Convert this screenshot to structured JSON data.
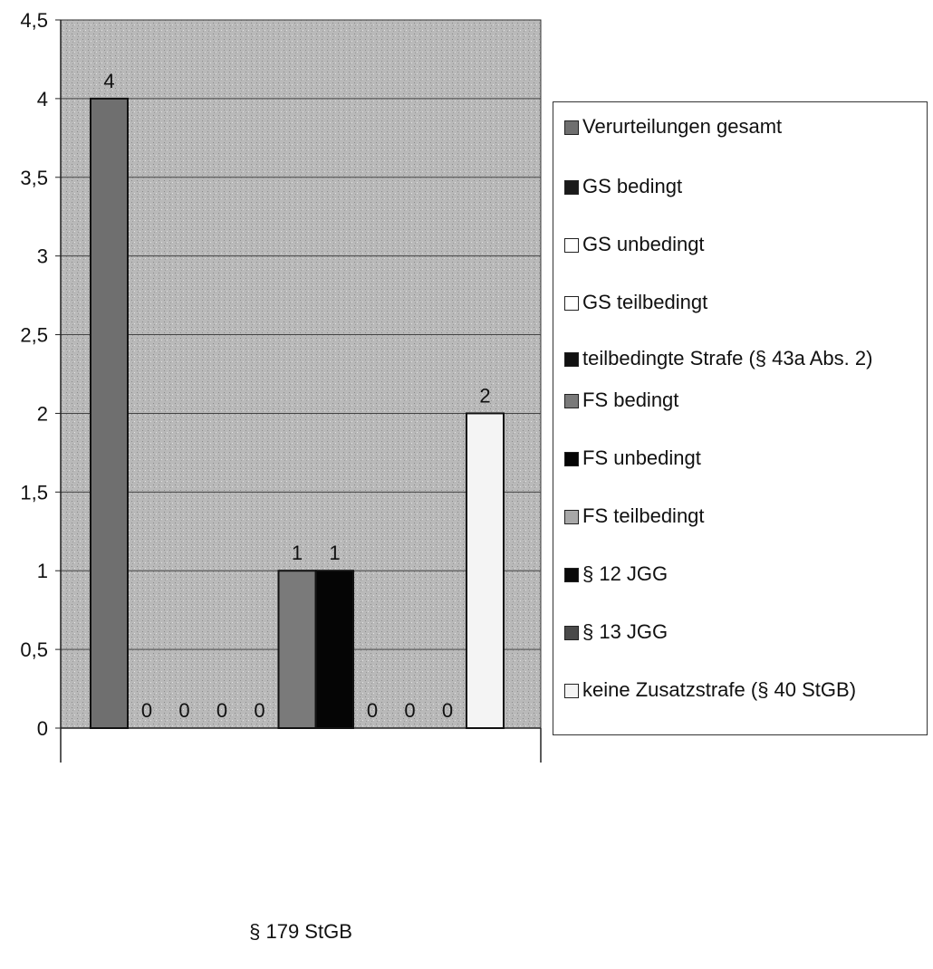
{
  "chart_data": {
    "type": "bar",
    "categories": [
      "§ 179 StGB"
    ],
    "ylim": [
      0,
      4.5
    ],
    "y_ticks": [
      "0",
      "0,5",
      "1",
      "1,5",
      "2",
      "2,5",
      "3",
      "3,5",
      "4",
      "4,5"
    ],
    "grid": true,
    "legend_position": "right",
    "series": [
      {
        "name": "Verurteilungen gesamt",
        "values": [
          4
        ],
        "label": "4",
        "color": "#6f6f6f"
      },
      {
        "name": "GS bedingt",
        "values": [
          0
        ],
        "label": "0",
        "color": "#1a1a1a"
      },
      {
        "name": "GS unbedingt",
        "values": [
          0
        ],
        "label": "0",
        "color": "#ffffff"
      },
      {
        "name": "GS teilbedingt",
        "values": [
          0
        ],
        "label": "0",
        "color": "#ffffff"
      },
      {
        "name": "teilbedingte Strafe (§ 43a Abs. 2)",
        "values": [
          0
        ],
        "label": "0",
        "color": "#111111"
      },
      {
        "name": "FS bedingt",
        "values": [
          1
        ],
        "label": "1",
        "color": "#7a7a7a"
      },
      {
        "name": "FS unbedingt",
        "values": [
          1
        ],
        "label": "1",
        "color": "#050505"
      },
      {
        "name": "FS teilbedingt",
        "values": [
          0
        ],
        "label": "0",
        "color": "#a8a8a8"
      },
      {
        "name": "§ 12 JGG",
        "values": [
          0
        ],
        "label": "0",
        "color": "#0a0a0a"
      },
      {
        "name": "§ 13 JGG",
        "values": [
          0
        ],
        "label": "0",
        "color": "#4a4a4a"
      },
      {
        "name": "keine Zusatzstrafe (§ 40 StGB)",
        "values": [
          2
        ],
        "label": "2",
        "color": "#f4f4f4"
      }
    ]
  }
}
